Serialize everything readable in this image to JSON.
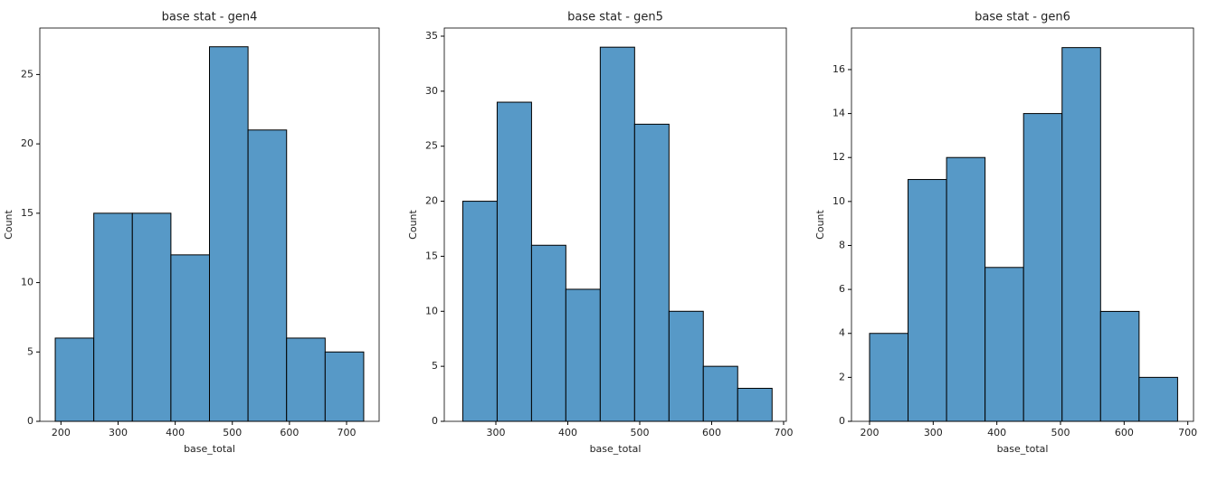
{
  "chart_data": [
    {
      "type": "histogram",
      "title": "base stat - gen4",
      "xlabel": "base_total",
      "ylabel": "Count",
      "color": "#5799c7",
      "bins": [
        190,
        257.5,
        325,
        392.5,
        460,
        527.5,
        595,
        662.5,
        730
      ],
      "values": [
        6,
        15,
        15,
        12,
        27,
        21,
        6,
        5
      ],
      "xlim": [
        163,
        757
      ],
      "xticks": [
        200,
        300,
        400,
        500,
        600,
        700
      ],
      "ylim": [
        0,
        28.35
      ],
      "yticks": [
        0,
        5,
        10,
        15,
        20,
        25
      ]
    },
    {
      "type": "histogram",
      "title": "base stat - gen5",
      "xlabel": "base_total",
      "ylabel": "Count",
      "color": "#5799c7",
      "bins": [
        254,
        301.8,
        349.6,
        397.3,
        445.1,
        492.9,
        540.7,
        588.4,
        636.2,
        684
      ],
      "values": [
        20,
        29,
        16,
        12,
        34,
        27,
        10,
        5,
        3
      ],
      "xlim": [
        228.3,
        703.8
      ],
      "xticks": [
        300,
        400,
        500,
        600,
        700
      ],
      "ylim": [
        0,
        35.74
      ],
      "yticks": [
        0,
        5,
        10,
        15,
        20,
        25,
        30,
        35
      ]
    },
    {
      "type": "histogram",
      "title": "base stat - gen6",
      "xlabel": "base_total",
      "ylabel": "Count",
      "color": "#5799c7",
      "bins": [
        200,
        260.5,
        321,
        381.5,
        442,
        502.5,
        563,
        623.5,
        684
      ],
      "values": [
        4,
        11,
        12,
        7,
        14,
        17,
        5,
        2
      ],
      "xlim": [
        171.6,
        709
      ],
      "xticks": [
        200,
        300,
        400,
        500,
        600,
        700
      ],
      "ylim": [
        0,
        17.89
      ],
      "yticks": [
        0,
        2,
        4,
        6,
        8,
        10,
        12,
        14,
        16
      ]
    }
  ]
}
